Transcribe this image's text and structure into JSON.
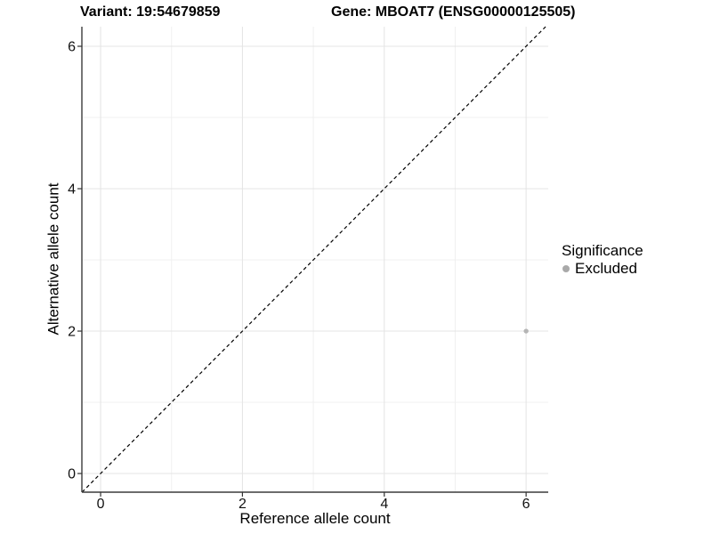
{
  "header": {
    "variant_title": "Variant: 19:54679859",
    "gene_title": "Gene: MBOAT7 (ENSG00000125505)"
  },
  "chart_data": {
    "type": "scatter",
    "title": "Variant: 19:54679859  Gene: MBOAT7 (ENSG00000125505)",
    "xlabel": "Reference allele count",
    "ylabel": "Alternative allele count",
    "xlim": [
      -0.264,
      6.312
    ],
    "ylim": [
      -0.262,
      6.275
    ],
    "x_ticks": [
      0,
      2,
      4,
      6
    ],
    "y_ticks": [
      0,
      2,
      4,
      6
    ],
    "x_minor_ticks": [
      1,
      3,
      5
    ],
    "y_minor_ticks": [
      1,
      3,
      5
    ],
    "grid": "on",
    "reference_line": {
      "kind": "identity",
      "equation": "y = x",
      "style": "dashed",
      "color": "#000000"
    },
    "series": [
      {
        "name": "Excluded",
        "color": "#b5b5b5",
        "points": [
          {
            "x": 6,
            "y": 2
          }
        ]
      }
    ],
    "legend": {
      "position": "right",
      "title": "Significance",
      "entries": [
        {
          "label": "Excluded",
          "color": "#a9a9a9"
        }
      ]
    },
    "style": {
      "background": "#ffffff",
      "major_grid_color": "#e4e4e4",
      "minor_grid_color": "#f0f0f0",
      "axis_line_color": "#3c3c3c",
      "tick_color": "#333333",
      "tick_label_color": "#111111"
    }
  }
}
